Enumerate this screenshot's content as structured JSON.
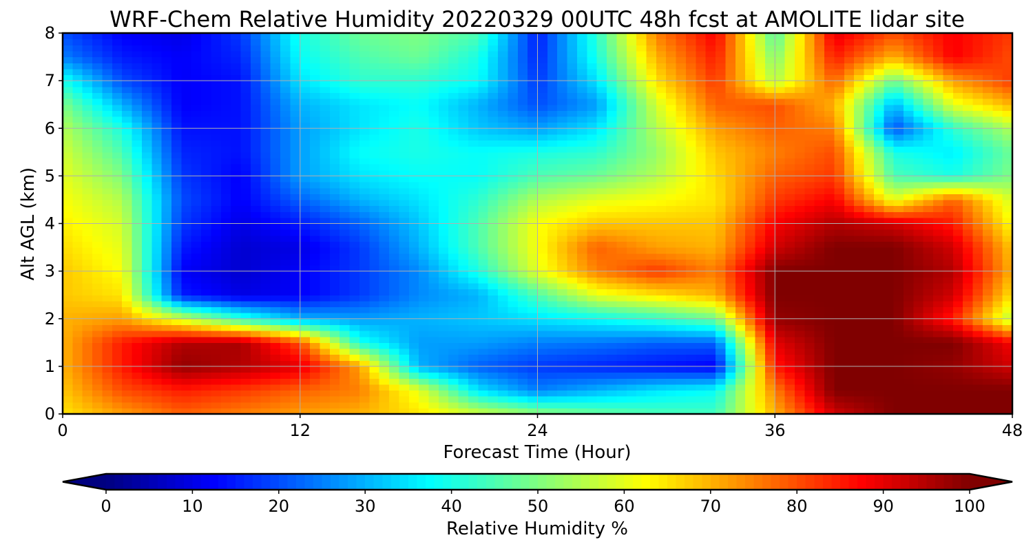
{
  "chart_data": {
    "type": "heatmap",
    "title": "WRF-Chem Relative Humidity 20220329 00UTC 48h fcst at AMOLITE lidar site",
    "xlabel": "Forecast Time (Hour)",
    "ylabel": "Alt AGL (km)",
    "xlim": [
      0,
      48
    ],
    "ylim": [
      0,
      8
    ],
    "x_ticks": [
      0,
      12,
      24,
      36,
      48
    ],
    "y_ticks": [
      0,
      1,
      2,
      3,
      4,
      5,
      6,
      7,
      8
    ],
    "grid": true,
    "x": [
      0,
      3,
      6,
      9,
      12,
      15,
      18,
      21,
      24,
      27,
      30,
      33,
      36,
      39,
      42,
      45,
      48
    ],
    "y": [
      0,
      0.5,
      1,
      1.5,
      2,
      2.5,
      3,
      3.5,
      4,
      4.5,
      5,
      5.5,
      6,
      6.5,
      7,
      7.5,
      8
    ],
    "z_units": "Relative Humidity %",
    "z": [
      [
        65,
        72,
        78,
        75,
        72,
        70,
        65,
        58,
        52,
        48,
        45,
        44,
        70,
        92,
        100,
        100,
        100
      ],
      [
        68,
        80,
        85,
        82,
        78,
        75,
        60,
        35,
        25,
        30,
        35,
        38,
        75,
        100,
        100,
        100,
        100
      ],
      [
        70,
        85,
        98,
        95,
        90,
        72,
        30,
        22,
        18,
        16,
        14,
        12,
        85,
        100,
        100,
        98,
        92
      ],
      [
        70,
        85,
        95,
        96,
        80,
        40,
        28,
        28,
        25,
        24,
        22,
        22,
        90,
        100,
        100,
        100,
        88
      ],
      [
        70,
        72,
        58,
        42,
        30,
        28,
        30,
        32,
        35,
        38,
        42,
        48,
        98,
        100,
        100,
        85,
        55
      ],
      [
        68,
        65,
        15,
        10,
        12,
        18,
        26,
        30,
        45,
        60,
        65,
        70,
        100,
        100,
        100,
        92,
        65
      ],
      [
        68,
        62,
        12,
        8,
        12,
        18,
        26,
        40,
        60,
        75,
        82,
        75,
        100,
        100,
        100,
        95,
        70
      ],
      [
        66,
        60,
        15,
        8,
        10,
        18,
        30,
        45,
        62,
        78,
        72,
        70,
        92,
        100,
        100,
        92,
        68
      ],
      [
        64,
        58,
        18,
        10,
        15,
        22,
        32,
        45,
        62,
        68,
        68,
        68,
        88,
        95,
        92,
        85,
        62
      ],
      [
        62,
        55,
        20,
        12,
        22,
        30,
        35,
        42,
        55,
        60,
        62,
        65,
        82,
        88,
        60,
        78,
        58
      ],
      [
        60,
        50,
        18,
        12,
        28,
        35,
        38,
        38,
        45,
        48,
        55,
        66,
        78,
        82,
        45,
        40,
        50
      ],
      [
        58,
        45,
        16,
        14,
        28,
        38,
        40,
        38,
        40,
        42,
        52,
        68,
        75,
        80,
        40,
        36,
        48
      ],
      [
        55,
        40,
        14,
        14,
        28,
        35,
        40,
        32,
        28,
        35,
        55,
        72,
        78,
        75,
        20,
        42,
        55
      ],
      [
        50,
        30,
        12,
        14,
        30,
        35,
        38,
        30,
        20,
        28,
        58,
        78,
        80,
        70,
        30,
        60,
        70
      ],
      [
        40,
        20,
        12,
        14,
        35,
        42,
        42,
        38,
        18,
        35,
        65,
        82,
        55,
        78,
        48,
        72,
        82
      ],
      [
        25,
        15,
        12,
        16,
        38,
        45,
        48,
        40,
        16,
        40,
        70,
        85,
        50,
        85,
        70,
        88,
        80
      ],
      [
        20,
        12,
        10,
        18,
        40,
        48,
        50,
        45,
        15,
        42,
        75,
        88,
        45,
        90,
        80,
        88,
        82
      ]
    ],
    "colorbar": {
      "label": "Relative Humidity %",
      "orientation": "horizontal",
      "min": 0,
      "max": 100,
      "ticks": [
        0,
        10,
        20,
        30,
        40,
        50,
        60,
        70,
        80,
        90,
        100
      ],
      "extend": "both",
      "colormap": "jet"
    }
  }
}
